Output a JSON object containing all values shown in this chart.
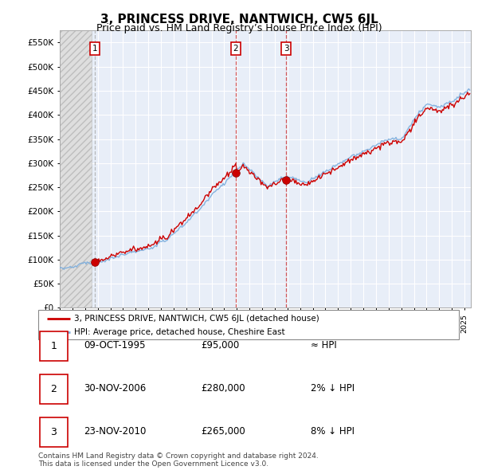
{
  "title": "3, PRINCESS DRIVE, NANTWICH, CW5 6JL",
  "subtitle": "Price paid vs. HM Land Registry’s House Price Index (HPI)",
  "title_fontsize": 11,
  "subtitle_fontsize": 9,
  "sales": [
    {
      "year": 1995.75,
      "price": 95000,
      "label": "1",
      "pct": "≈ HPI",
      "vline_color": "#aaaaaa"
    },
    {
      "year": 2006.917,
      "price": 280000,
      "label": "2",
      "pct": "2% ↓ HPI",
      "vline_color": "#cc3333"
    },
    {
      "year": 2010.9,
      "price": 265000,
      "label": "3",
      "pct": "8% ↓ HPI",
      "vline_color": "#cc3333"
    }
  ],
  "legend_line1": "3, PRINCESS DRIVE, NANTWICH, CW5 6JL (detached house)",
  "legend_line2": "HPI: Average price, detached house, Cheshire East",
  "footer_line1": "Contains HM Land Registry data © Crown copyright and database right 2024.",
  "footer_line2": "This data is licensed under the Open Government Licence v3.0.",
  "property_color": "#cc0000",
  "hpi_color": "#7aacdc",
  "background_color": "#e8eef8",
  "grid_color": "#ffffff",
  "ylim": [
    0,
    575000
  ],
  "yticks": [
    0,
    50000,
    100000,
    150000,
    200000,
    250000,
    300000,
    350000,
    400000,
    450000,
    500000,
    550000
  ],
  "xlim_start": 1993.0,
  "xlim_end": 2025.5,
  "hatch_end": 1995.5,
  "sale_info": [
    [
      "1",
      "09-OCT-1995",
      "£95,000",
      "≈ HPI"
    ],
    [
      "2",
      "30-NOV-2006",
      "£280,000",
      "2% ↓ HPI"
    ],
    [
      "3",
      "23-NOV-2010",
      "£265,000",
      "8% ↓ HPI"
    ]
  ]
}
